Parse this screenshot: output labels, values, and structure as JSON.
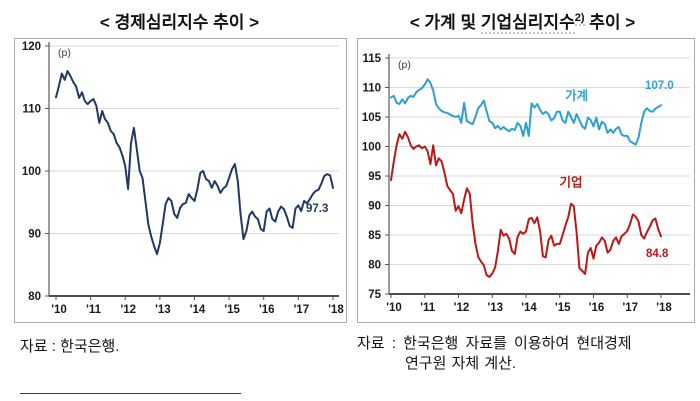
{
  "left_panel": {
    "title": "< 경제심리지수 추이 >",
    "source": "자료 : 한국은행."
  },
  "right_panel": {
    "title": {
      "open": "< 가계 및 ",
      "underlined": "기업심리지수",
      "sup": "2)",
      "close": " 추이 >"
    },
    "source_line1": "자료 : 한국은행 자료를 이용하여 현대경제",
    "source_line2": "연구원 자체 계산."
  },
  "chart_data": [
    {
      "type": "line",
      "title": "경제심리지수 추이",
      "unit_label": "(p)",
      "frequency": "monthly",
      "x_start": "2010-01",
      "x_end": "2018-01",
      "x_tick_labels": [
        "'10",
        "'11",
        "'12",
        "'13",
        "'14",
        "'15",
        "'16",
        "'17",
        "'18"
      ],
      "ylim": [
        80,
        120
      ],
      "yticks": [
        80,
        90,
        100,
        110,
        120
      ],
      "grid": true,
      "series": [
        {
          "id": "esi",
          "name": "경제심리지수",
          "color": "#1f3864",
          "end_label": "97.3",
          "end_label_offset": [
            -27,
            24
          ],
          "values": [
            111.8,
            113.6,
            115.6,
            114.6,
            116.0,
            115.2,
            114.2,
            113.5,
            111.7,
            112.6,
            111.2,
            110.7,
            111.2,
            111.5,
            110.4,
            107.7,
            109.6,
            108.3,
            107.7,
            106.4,
            105.9,
            104.5,
            103.8,
            102.5,
            100.8,
            97.1,
            104.5,
            106.9,
            103.5,
            100.0,
            98.9,
            95.2,
            91.5,
            89.5,
            88.0,
            86.7,
            88.5,
            91.5,
            94.7,
            95.7,
            95.2,
            93.1,
            92.5,
            94.1,
            94.7,
            94.9,
            96.3,
            95.7,
            95.2,
            97.1,
            99.7,
            100.0,
            98.7,
            98.4,
            97.3,
            98.4,
            97.6,
            96.5,
            97.2,
            97.6,
            98.9,
            100.3,
            101.1,
            98.4,
            93.0,
            89.1,
            90.4,
            92.9,
            93.5,
            92.7,
            92.3,
            90.7,
            90.4,
            93.5,
            94.0,
            92.3,
            91.9,
            93.5,
            94.3,
            93.9,
            92.7,
            91.2,
            90.9,
            94.0,
            94.5,
            93.6,
            95.2,
            94.8,
            95.5,
            96.3,
            96.8,
            97.0,
            98.0,
            99.2,
            99.5,
            99.3,
            97.3
          ]
        }
      ]
    },
    {
      "type": "line",
      "title": "가계 및 기업심리지수 추이",
      "unit_label": "(p)",
      "frequency": "monthly",
      "x_start": "2010-01",
      "x_end": "2018-01",
      "x_tick_labels": [
        "'10",
        "'11",
        "'12",
        "'13",
        "'14",
        "'15",
        "'16",
        "'17",
        "'18"
      ],
      "ylim": [
        75,
        115
      ],
      "yticks": [
        75,
        80,
        85,
        90,
        95,
        100,
        105,
        110,
        115
      ],
      "grid": true,
      "series": [
        {
          "id": "household",
          "name": "가계",
          "color": "#2ea0cd",
          "end_label": "107.0",
          "end_label_offset": [
            -16,
            -16
          ],
          "name_label_index": 66,
          "name_label_dy": -14,
          "values": [
            108.3,
            108.6,
            107.4,
            107.2,
            108.0,
            107.3,
            108.2,
            108.6,
            108.4,
            109.2,
            109.6,
            109.9,
            110.5,
            111.4,
            110.8,
            109.5,
            107.2,
            106.5,
            106.0,
            105.8,
            105.7,
            105.4,
            105.2,
            105.0,
            105.2,
            104.0,
            107.4,
            104.3,
            104.0,
            103.8,
            105.0,
            106.5,
            107.0,
            107.8,
            106.0,
            104.3,
            104.0,
            103.1,
            103.5,
            102.9,
            103.3,
            102.9,
            102.6,
            103.0,
            102.8,
            104.0,
            103.5,
            101.8,
            104.0,
            101.8,
            107.3,
            106.6,
            107.2,
            106.2,
            105.5,
            105.9,
            105.5,
            104.4,
            104.8,
            105.9,
            105.9,
            104.4,
            104.0,
            105.9,
            105.0,
            104.0,
            105.5,
            104.5,
            103.4,
            103.0,
            104.9,
            104.5,
            103.4,
            104.9,
            102.9,
            104.2,
            103.8,
            102.3,
            102.9,
            102.3,
            103.0,
            103.3,
            102.0,
            101.8,
            101.8,
            100.9,
            100.6,
            100.3,
            101.5,
            104.0,
            105.9,
            106.5,
            106.0,
            105.9,
            106.4,
            106.7,
            107.0
          ]
        },
        {
          "id": "business",
          "name": "기업",
          "color": "#bb1918",
          "end_label": "84.8",
          "end_label_offset": [
            -15,
            21
          ],
          "name_label_index": 64,
          "name_label_dy": -17,
          "values": [
            94.3,
            97.5,
            100.2,
            102.1,
            101.3,
            102.5,
            101.6,
            100.2,
            99.6,
            100.0,
            100.2,
            99.7,
            100.0,
            99.2,
            97.0,
            100.2,
            96.8,
            98.0,
            97.5,
            95.6,
            93.3,
            92.6,
            92.0,
            89.1,
            89.9,
            88.7,
            91.0,
            92.9,
            92.0,
            87.0,
            83.6,
            81.3,
            80.5,
            79.9,
            78.2,
            77.9,
            78.5,
            79.5,
            82.3,
            85.9,
            84.9,
            85.2,
            84.4,
            82.3,
            81.8,
            84.7,
            85.6,
            85.2,
            85.6,
            87.7,
            87.9,
            87.0,
            88.0,
            85.6,
            81.4,
            81.2,
            84.1,
            84.9,
            83.2,
            83.5,
            83.5,
            85.0,
            86.6,
            88.0,
            90.3,
            89.9,
            85.4,
            79.4,
            78.9,
            78.4,
            82.0,
            82.8,
            81.0,
            83.2,
            83.7,
            84.6,
            84.0,
            82.0,
            82.5,
            84.0,
            84.6,
            83.5,
            84.8,
            85.2,
            85.7,
            86.9,
            88.5,
            88.1,
            87.3,
            85.0,
            84.4,
            85.5,
            86.4,
            87.5,
            87.8,
            86.0,
            84.8
          ]
        }
      ]
    }
  ]
}
